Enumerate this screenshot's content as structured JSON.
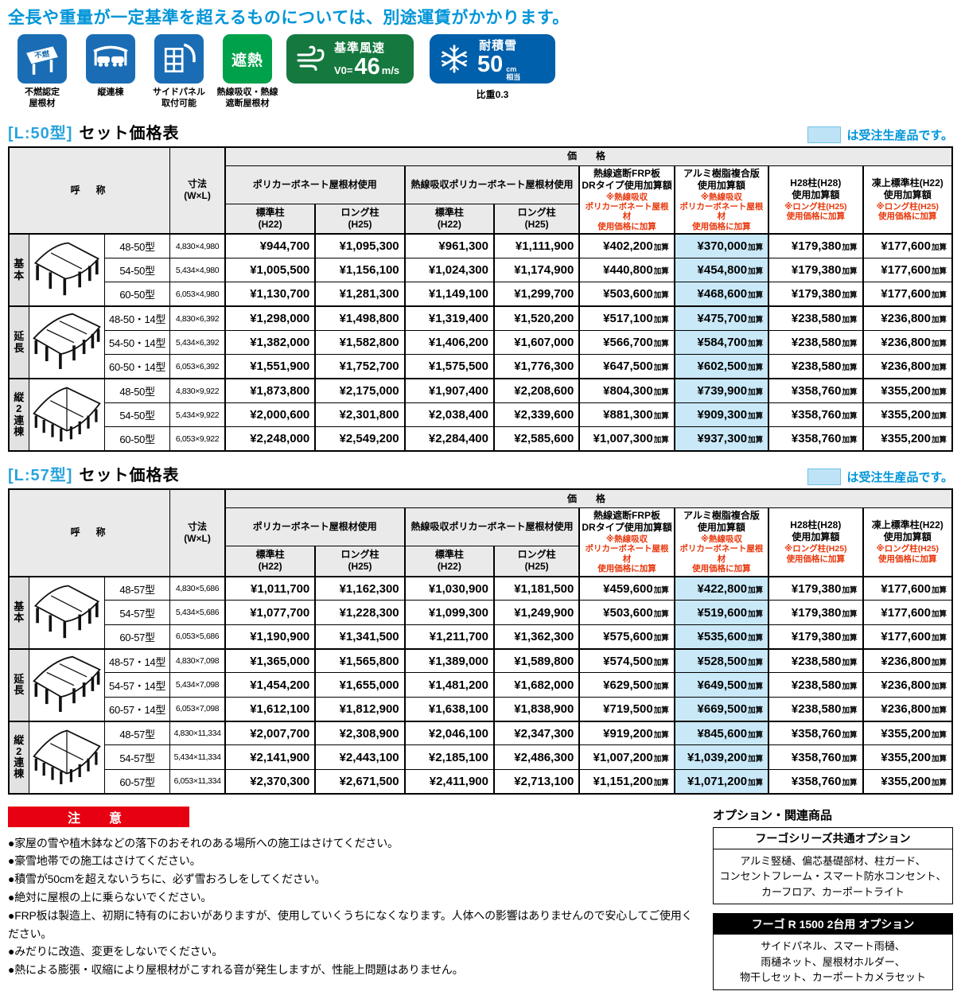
{
  "top_note": "全長や重量が一定基準を超えるものについては、別途運賃がかかります。",
  "features": {
    "tiles": [
      {
        "icon": "fireproof-roof-icon",
        "sign_text": "不燃",
        "caption": "不燃認定\n屋根材",
        "color": "#1a6db4"
      },
      {
        "icon": "tandem-carport-icon",
        "caption": "縦連棟",
        "color": "#1a6db4"
      },
      {
        "icon": "side-panel-icon",
        "caption": "サイドパネル\n取付可能",
        "color": "#1a6db4"
      },
      {
        "icon": "heat-shield-icon",
        "tile_text": "遮熱",
        "caption": "熱線吸収・熱線\n遮断屋根材",
        "color": "#00a14b"
      }
    ],
    "wind_badge": {
      "title": "基準風速",
      "prefix": "V0=",
      "value": "46",
      "unit": "m/s",
      "color": "#15793f"
    },
    "snow_badge": {
      "title": "耐積雪",
      "value": "50",
      "unit_top": "cm",
      "unit_bottom": "相当",
      "caption": "比重0.3",
      "color": "#0060ab"
    }
  },
  "legend": {
    "text": "は受注生産品です。",
    "swatch_color": "#bfe3f6"
  },
  "table_header": {
    "name": "呼　称",
    "size": "寸法\n(W×L)",
    "price": "価　格",
    "roof_groups": [
      {
        "label": "ポリカーボネート屋根材使用",
        "subs": [
          "標準柱\n(H22)",
          "ロング柱\n(H25)"
        ]
      },
      {
        "label": "熱線吸収ポリカーボネート屋根材使用",
        "subs": [
          "標準柱\n(H22)",
          "ロング柱\n(H25)"
        ]
      }
    ],
    "addition_columns": [
      {
        "title": "熱線遮断FRP板\nDRタイプ使用加算額",
        "note": "※熱線吸収\nポリカーボネート屋根材\n使用価格に加算",
        "made_to_order": false
      },
      {
        "title": "アルミ樹脂複合版\n使用加算額",
        "note": "※熱線吸収\nポリカーボネート屋根材\n使用価格に加算",
        "made_to_order": true
      },
      {
        "title": "H28柱(H28)\n使用加算額",
        "note": "※ロング柱(H25)\n使用価格に加算",
        "made_to_order": false
      },
      {
        "title": "凍上標準柱(H22)\n使用加算額",
        "note": "※ロング柱(H25)\n使用価格に加算",
        "made_to_order": false
      }
    ],
    "addition_suffix": "加算"
  },
  "tables": [
    {
      "title_code": "[L:50型]",
      "title_text": "セット価格表",
      "groups": [
        {
          "label": "基本",
          "icon": "carport-basic-drawing",
          "rows": [
            {
              "model": "48-50型",
              "size": "4,830×4,980",
              "prices": [
                "¥944,700",
                "¥1,095,300",
                "¥961,300",
                "¥1,111,900"
              ],
              "additions": [
                "¥402,200",
                "¥370,000",
                "¥179,380",
                "¥177,600"
              ]
            },
            {
              "model": "54-50型",
              "size": "5,434×4,980",
              "prices": [
                "¥1,005,500",
                "¥1,156,100",
                "¥1,024,300",
                "¥1,174,900"
              ],
              "additions": [
                "¥440,800",
                "¥454,800",
                "¥179,380",
                "¥177,600"
              ]
            },
            {
              "model": "60-50型",
              "size": "6,053×4,980",
              "prices": [
                "¥1,130,700",
                "¥1,281,300",
                "¥1,149,100",
                "¥1,299,700"
              ],
              "additions": [
                "¥503,600",
                "¥468,600",
                "¥179,380",
                "¥177,600"
              ]
            }
          ]
        },
        {
          "label": "延長",
          "icon": "carport-extended-drawing",
          "rows": [
            {
              "model": "48-50・14型",
              "size": "4,830×6,392",
              "prices": [
                "¥1,298,000",
                "¥1,498,800",
                "¥1,319,400",
                "¥1,520,200"
              ],
              "additions": [
                "¥517,100",
                "¥475,700",
                "¥238,580",
                "¥236,800"
              ]
            },
            {
              "model": "54-50・14型",
              "size": "5,434×6,392",
              "prices": [
                "¥1,382,000",
                "¥1,582,800",
                "¥1,406,200",
                "¥1,607,000"
              ],
              "additions": [
                "¥566,700",
                "¥584,700",
                "¥238,580",
                "¥236,800"
              ]
            },
            {
              "model": "60-50・14型",
              "size": "6,053×6,392",
              "prices": [
                "¥1,551,900",
                "¥1,752,700",
                "¥1,575,500",
                "¥1,776,300"
              ],
              "additions": [
                "¥647,500",
                "¥602,500",
                "¥238,580",
                "¥236,800"
              ]
            }
          ]
        },
        {
          "label": "縦2連棟",
          "icon": "carport-double-drawing",
          "rows": [
            {
              "model": "48-50型",
              "size": "4,830×9,922",
              "prices": [
                "¥1,873,800",
                "¥2,175,000",
                "¥1,907,400",
                "¥2,208,600"
              ],
              "additions": [
                "¥804,300",
                "¥739,900",
                "¥358,760",
                "¥355,200"
              ]
            },
            {
              "model": "54-50型",
              "size": "5,434×9,922",
              "prices": [
                "¥2,000,600",
                "¥2,301,800",
                "¥2,038,400",
                "¥2,339,600"
              ],
              "additions": [
                "¥881,300",
                "¥909,300",
                "¥358,760",
                "¥355,200"
              ]
            },
            {
              "model": "60-50型",
              "size": "6,053×9,922",
              "prices": [
                "¥2,248,000",
                "¥2,549,200",
                "¥2,284,400",
                "¥2,585,600"
              ],
              "additions": [
                "¥1,007,300",
                "¥937,300",
                "¥358,760",
                "¥355,200"
              ]
            }
          ]
        }
      ]
    },
    {
      "title_code": "[L:57型]",
      "title_text": "セット価格表",
      "groups": [
        {
          "label": "基本",
          "icon": "carport-basic-drawing",
          "rows": [
            {
              "model": "48-57型",
              "size": "4,830×5,686",
              "prices": [
                "¥1,011,700",
                "¥1,162,300",
                "¥1,030,900",
                "¥1,181,500"
              ],
              "additions": [
                "¥459,600",
                "¥422,800",
                "¥179,380",
                "¥177,600"
              ]
            },
            {
              "model": "54-57型",
              "size": "5,434×5,686",
              "prices": [
                "¥1,077,700",
                "¥1,228,300",
                "¥1,099,300",
                "¥1,249,900"
              ],
              "additions": [
                "¥503,600",
                "¥519,600",
                "¥179,380",
                "¥177,600"
              ]
            },
            {
              "model": "60-57型",
              "size": "6,053×5,686",
              "prices": [
                "¥1,190,900",
                "¥1,341,500",
                "¥1,211,700",
                "¥1,362,300"
              ],
              "additions": [
                "¥575,600",
                "¥535,600",
                "¥179,380",
                "¥177,600"
              ]
            }
          ]
        },
        {
          "label": "延長",
          "icon": "carport-extended-drawing",
          "rows": [
            {
              "model": "48-57・14型",
              "size": "4,830×7,098",
              "prices": [
                "¥1,365,000",
                "¥1,565,800",
                "¥1,389,000",
                "¥1,589,800"
              ],
              "additions": [
                "¥574,500",
                "¥528,500",
                "¥238,580",
                "¥236,800"
              ]
            },
            {
              "model": "54-57・14型",
              "size": "5,434×7,098",
              "prices": [
                "¥1,454,200",
                "¥1,655,000",
                "¥1,481,200",
                "¥1,682,000"
              ],
              "additions": [
                "¥629,500",
                "¥649,500",
                "¥238,580",
                "¥236,800"
              ]
            },
            {
              "model": "60-57・14型",
              "size": "6,053×7,098",
              "prices": [
                "¥1,612,100",
                "¥1,812,900",
                "¥1,638,100",
                "¥1,838,900"
              ],
              "additions": [
                "¥719,500",
                "¥669,500",
                "¥238,580",
                "¥236,800"
              ]
            }
          ]
        },
        {
          "label": "縦2連棟",
          "icon": "carport-double-drawing",
          "rows": [
            {
              "model": "48-57型",
              "size": "4,830×11,334",
              "prices": [
                "¥2,007,700",
                "¥2,308,900",
                "¥2,046,100",
                "¥2,347,300"
              ],
              "additions": [
                "¥919,200",
                "¥845,600",
                "¥358,760",
                "¥355,200"
              ]
            },
            {
              "model": "54-57型",
              "size": "5,434×11,334",
              "prices": [
                "¥2,141,900",
                "¥2,443,100",
                "¥2,185,100",
                "¥2,486,300"
              ],
              "additions": [
                "¥1,007,200",
                "¥1,039,200",
                "¥358,760",
                "¥355,200"
              ]
            },
            {
              "model": "60-57型",
              "size": "6,053×11,334",
              "prices": [
                "¥2,370,300",
                "¥2,671,500",
                "¥2,411,900",
                "¥2,713,100"
              ],
              "additions": [
                "¥1,151,200",
                "¥1,071,200",
                "¥358,760",
                "¥355,200"
              ]
            }
          ]
        }
      ]
    }
  ],
  "notes": {
    "title": "注　意",
    "bullet": "●",
    "items": [
      "家屋の雪や植木鉢などの落下のおそれのある場所への施工はさけてください。",
      "豪雪地帯での施工はさけてください。",
      "積雪が50cmを超えないうちに、必ず雪おろしをしてください。",
      "絶対に屋根の上に乗らないでください。",
      "FRP板は製造上、初期に特有のにおいがありますが、使用していくうちになくなります。人体への影響はありませんので安心してご使用ください。",
      "みだりに改造、変更をしないでください。",
      "熱による膨張・収縮により屋根材がこすれる音が発生しますが、性能上問題はありません。"
    ]
  },
  "options": {
    "heading": "オプション・関連商品",
    "boxes": [
      {
        "header": "フーゴシリーズ共通オプション",
        "header_style": "plain",
        "body": "アルミ竪樋、偏芯基礎部材、柱ガード、\nコンセントフレーム・スマート防水コンセント、\nカーフロア、カーポートライト"
      },
      {
        "header": "フーゴ R 1500 2台用 オプション",
        "header_style": "black",
        "body": "サイドパネル、スマート雨樋、\n雨樋ネット、屋根材ホルダー、\n物干しセット、カーポートカメラセット"
      }
    ]
  }
}
